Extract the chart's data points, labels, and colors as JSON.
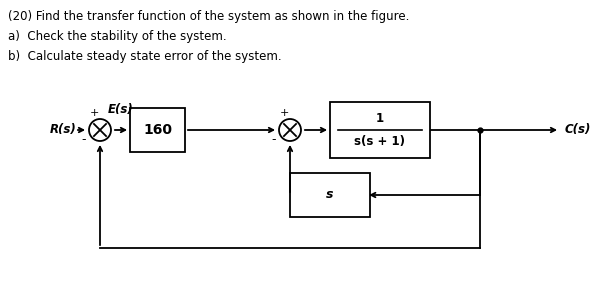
{
  "title_line": "(20) Find the transfer function of the system as shown in the figure.",
  "sub_a": "a)  Check the stability of the system.",
  "sub_b": "b)  Calculate steady state error of the system.",
  "bg_color": "#ffffff",
  "text_color": "#000000",
  "block_color": "#ffffff",
  "block_edge_color": "#000000",
  "line_color": "#000000",
  "font_size_title": 8.5,
  "font_size_labels": 8.5,
  "fig_width": 6.02,
  "fig_height": 2.81,
  "dpi": 100,
  "R_label": "R(s)",
  "E_label": "E(s)",
  "C_label": "C(s)",
  "block1_label": "160",
  "block2_num": "1",
  "block2_den": "s(s + 1)",
  "block3_label": "s",
  "plus1": "+",
  "minus1": "-",
  "plus2": "+",
  "minus2": "-"
}
